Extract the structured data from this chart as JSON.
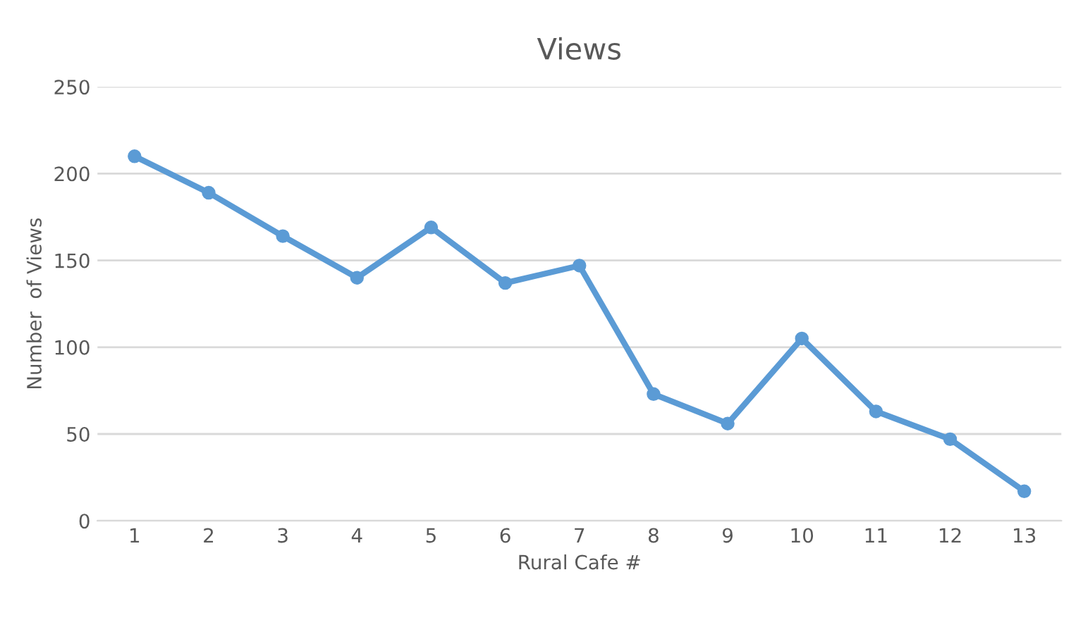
{
  "chart_data": {
    "type": "line",
    "title": "Views",
    "xlabel": "Rural Cafe #",
    "ylabel": "Number  of Views",
    "categories": [
      "1",
      "2",
      "3",
      "4",
      "5",
      "6",
      "7",
      "8",
      "9",
      "10",
      "11",
      "12",
      "13"
    ],
    "series": [
      {
        "color": "#5b9bd5",
        "values": [
          210,
          189,
          164,
          140,
          169,
          137,
          147,
          73,
          56,
          105,
          63,
          47,
          17
        ]
      }
    ],
    "ylim": [
      0,
      250
    ],
    "yticks": [
      0,
      50,
      100,
      150,
      200,
      250
    ],
    "grid": "y",
    "marker": "circle",
    "line_style": "solid",
    "legend": false
  }
}
